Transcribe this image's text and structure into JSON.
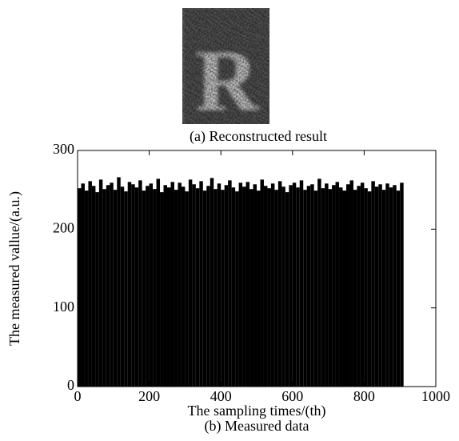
{
  "figure_a": {
    "caption": "(a) Reconstructed result"
  },
  "chart_data": {
    "type": "histogram",
    "caption": "(b) Measured data",
    "x_label": "The sampling times/(th)",
    "y_label": "The measured vallue/(a.u.)",
    "color": "#000000",
    "bins": [
      0,
      10,
      20,
      30,
      40,
      50,
      60,
      70,
      80,
      90,
      100,
      110,
      120,
      130,
      140,
      150,
      160,
      170,
      180,
      190,
      200,
      210,
      220,
      230,
      240,
      250,
      260,
      270,
      280,
      290,
      300,
      310,
      320,
      330,
      340,
      350,
      360,
      370,
      380,
      390,
      400,
      410,
      420,
      430,
      440,
      450,
      460,
      470,
      480,
      490,
      500,
      510,
      520,
      530,
      540,
      550,
      560,
      570,
      580,
      590,
      600,
      610,
      620,
      630,
      640,
      650,
      660,
      670,
      680,
      690,
      700,
      710,
      720,
      730,
      740,
      750,
      760,
      770,
      780,
      790,
      800,
      810,
      820,
      830,
      840,
      850,
      860,
      870,
      880,
      890,
      900,
      910
    ],
    "counts": [
      252,
      258,
      249,
      261,
      255,
      247,
      263,
      251,
      256,
      259,
      250,
      266,
      254,
      248,
      260,
      257,
      253,
      262,
      249,
      255,
      258,
      251,
      264,
      247,
      256,
      253,
      260,
      250,
      259,
      254,
      248,
      263,
      257,
      252,
      261,
      249,
      255,
      265,
      251,
      258,
      250,
      256,
      262,
      253,
      248,
      259,
      254,
      260,
      251,
      257,
      249,
      263,
      255,
      252,
      258,
      250,
      261,
      254,
      247,
      256,
      259,
      253,
      262,
      250,
      255,
      257,
      249,
      264,
      252,
      258,
      251,
      256,
      260,
      253,
      249,
      257,
      262,
      250,
      255,
      259,
      252,
      248,
      261,
      254,
      257,
      250,
      258,
      253,
      256,
      249,
      259
    ],
    "xlim": [
      0,
      1000
    ],
    "xticks": [
      0,
      200,
      400,
      600,
      800,
      1000
    ],
    "ylim": [
      0,
      300
    ],
    "yticks": [
      0,
      100,
      200,
      300
    ]
  }
}
